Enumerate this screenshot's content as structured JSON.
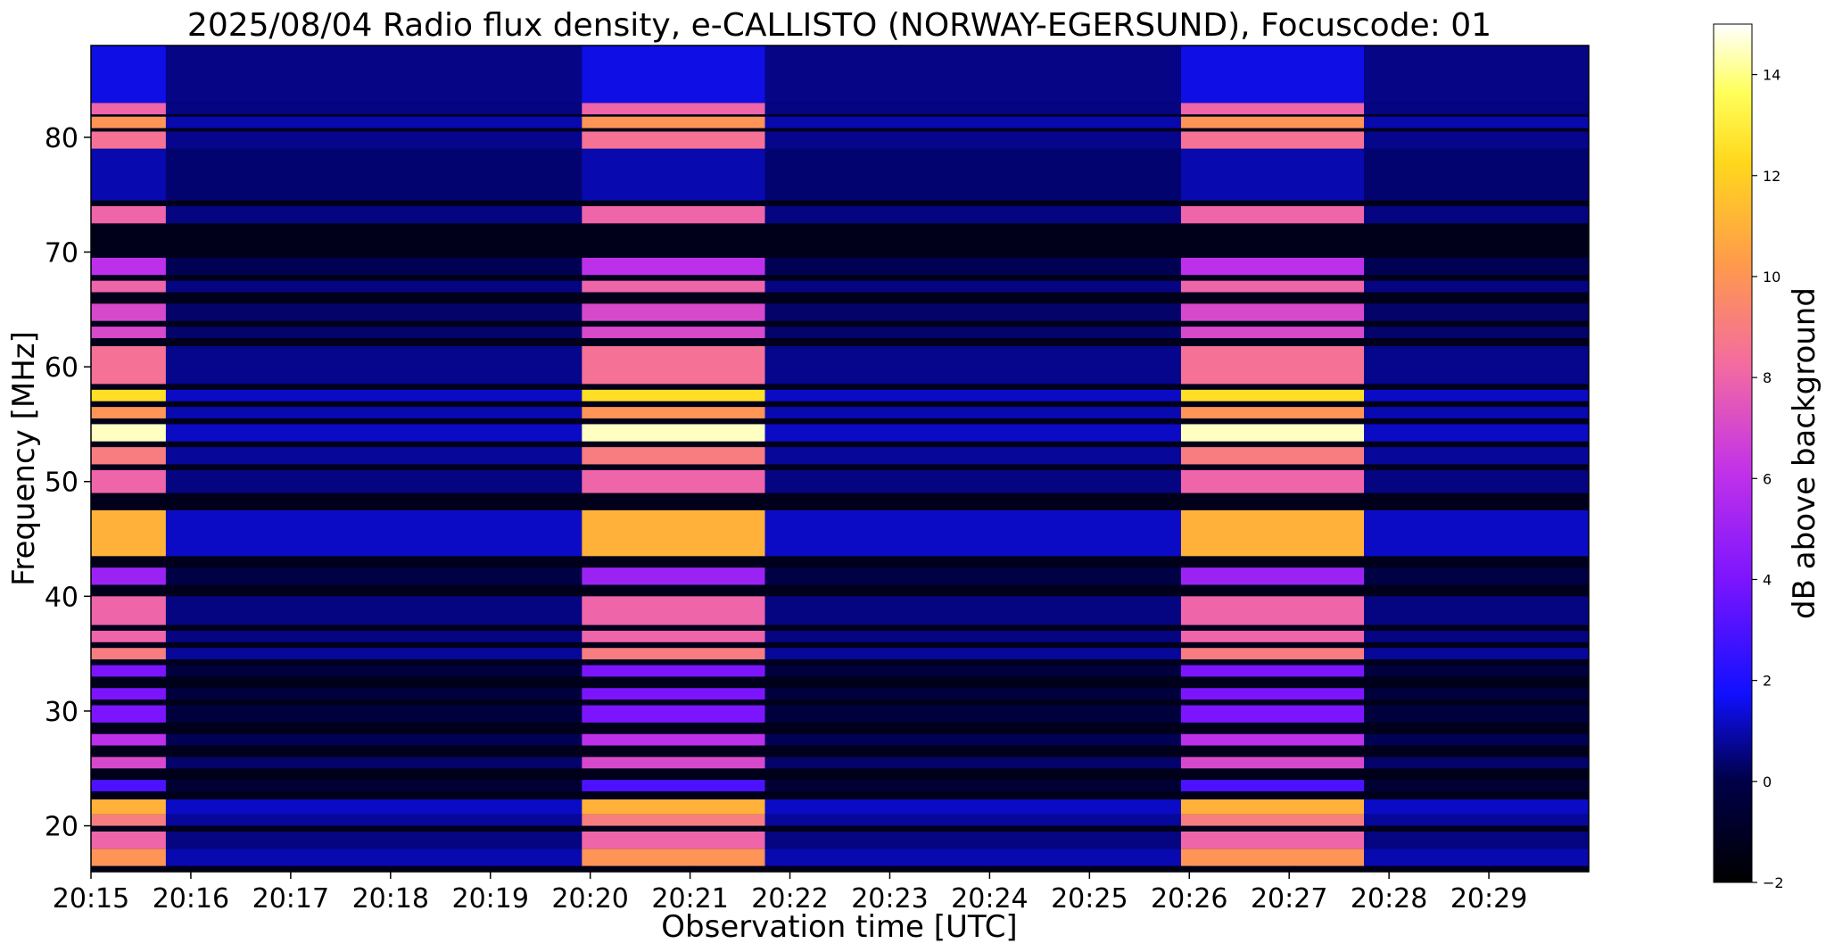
{
  "chart_data": {
    "type": "heatmap",
    "title": "2025/08/04  Radio flux density, e-CALLISTO (NORWAY-EGERSUND), Focuscode: 01",
    "xlabel": "Observation time [UTC]",
    "ylabel": "Frequency [MHz]",
    "colorbar_label": "dB above background",
    "colormap": "gnuplot2",
    "x_ticks": [
      "20:15",
      "20:16",
      "20:17",
      "20:18",
      "20:19",
      "20:20",
      "20:21",
      "20:22",
      "20:23",
      "20:24",
      "20:25",
      "20:26",
      "20:27",
      "20:28",
      "20:29"
    ],
    "x_range_minutes": [
      0,
      15
    ],
    "y_ticks": [
      20,
      30,
      40,
      50,
      60,
      70,
      80
    ],
    "y_range_mhz": [
      16,
      88
    ],
    "colorbar_ticks": [
      -2,
      0,
      2,
      4,
      6,
      8,
      10,
      12,
      14
    ],
    "colorbar_range_db": [
      -2,
      15
    ],
    "bright_intervals_utc": [
      [
        "20:15:00",
        "20:15:45"
      ],
      [
        "20:19:55",
        "20:21:45"
      ],
      [
        "20:25:55",
        "20:27:45"
      ]
    ],
    "band_profile": [
      {
        "f": [
          16.5,
          18
        ],
        "db": 10
      },
      {
        "f": [
          18,
          19.5
        ],
        "db": 8
      },
      {
        "f": [
          20,
          21
        ],
        "db": 9
      },
      {
        "f": [
          21,
          22.3
        ],
        "db": 11
      },
      {
        "f": [
          23,
          24
        ],
        "db": 3
      },
      {
        "f": [
          25,
          26
        ],
        "db": 7
      },
      {
        "f": [
          27,
          28
        ],
        "db": 6
      },
      {
        "f": [
          29,
          30.5
        ],
        "db": 4
      },
      {
        "f": [
          31,
          32
        ],
        "db": 4
      },
      {
        "f": [
          33,
          34
        ],
        "db": 4
      },
      {
        "f": [
          34.5,
          35.5
        ],
        "db": 9
      },
      {
        "f": [
          36,
          37
        ],
        "db": 8
      },
      {
        "f": [
          37.5,
          40
        ],
        "db": 8
      },
      {
        "f": [
          41,
          42.5
        ],
        "db": 5
      },
      {
        "f": [
          43.5,
          47.5
        ],
        "db": 11
      },
      {
        "f": [
          49,
          51
        ],
        "db": 8
      },
      {
        "f": [
          51.5,
          53
        ],
        "db": 9
      },
      {
        "f": [
          53.5,
          55
        ],
        "db": 14.5
      },
      {
        "f": [
          55.5,
          56.5
        ],
        "db": 10
      },
      {
        "f": [
          57,
          58
        ],
        "db": 12.5
      },
      {
        "f": [
          58.5,
          61.8
        ],
        "db": 8.5
      },
      {
        "f": [
          62.5,
          63.5
        ],
        "db": 7
      },
      {
        "f": [
          64,
          65.5
        ],
        "db": 7
      },
      {
        "f": [
          66.5,
          67.5
        ],
        "db": 8
      },
      {
        "f": [
          68,
          69.5
        ],
        "db": 6
      },
      {
        "f": [
          72.5,
          74
        ],
        "db": 8
      },
      {
        "f": [
          79,
          80.5
        ],
        "db": 8.5
      },
      {
        "f": [
          80.8,
          81.8
        ],
        "db": 10
      },
      {
        "f": [
          82,
          83
        ],
        "db": 8
      }
    ]
  }
}
